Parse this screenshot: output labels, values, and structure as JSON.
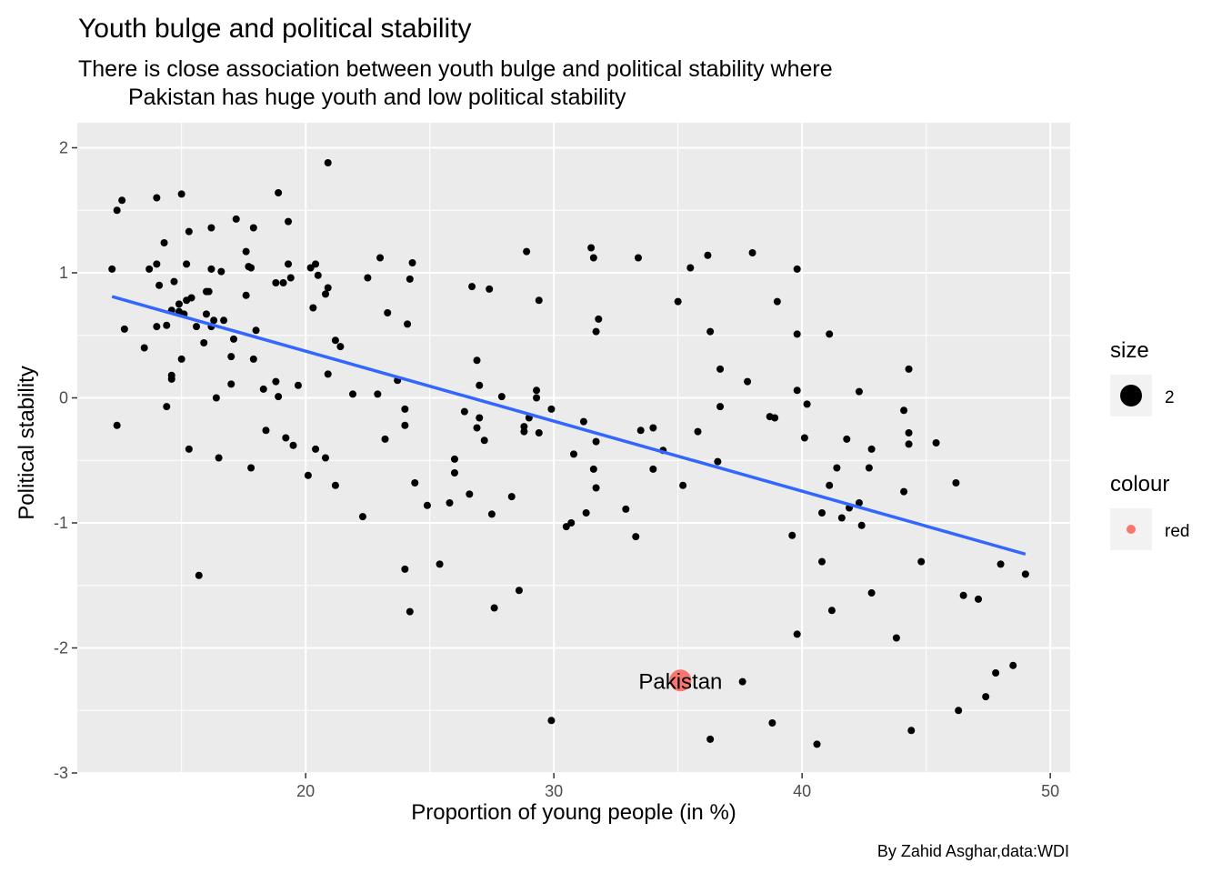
{
  "chart_data": {
    "type": "scatter",
    "title": "Youth bulge and political stability",
    "subtitle_lines": [
      "There is close association between youth bulge and political stability where",
      "Pakistan has huge youth and low political stability"
    ],
    "xlabel": "Proportion of young people (in %)",
    "ylabel": "Political stability",
    "caption": "By Zahid Asghar,data:WDI",
    "xlim": [
      10.8,
      50.8
    ],
    "ylim": [
      -3.0,
      2.2
    ],
    "x_ticks": [
      20,
      30,
      40,
      50
    ],
    "y_ticks": [
      -3,
      -2,
      -1,
      0,
      1,
      2
    ],
    "x_tick_labels": [
      "20",
      "30",
      "40",
      "50"
    ],
    "y_tick_labels": [
      "-3",
      "-2",
      "-1",
      "0",
      "1",
      "2"
    ],
    "grid": true,
    "legend_position": "right",
    "colors": {
      "panel": "#ebebeb",
      "grid": "#ffffff",
      "points": "#000000",
      "trend": "#3366ff",
      "highlight": "#f8766d"
    },
    "trend_line": {
      "x": [
        12.2,
        49.0
      ],
      "y": [
        0.81,
        -1.25
      ]
    },
    "highlight": {
      "label": "Pakistan",
      "x": 35.1,
      "y": -2.26
    },
    "legends": [
      {
        "title": "size",
        "label": "2",
        "symbol": "black-dot"
      },
      {
        "title": "colour",
        "label": "red",
        "symbol": "red-dot"
      }
    ],
    "points": [
      [
        12.2,
        1.03
      ],
      [
        12.4,
        -0.22
      ],
      [
        12.4,
        1.5
      ],
      [
        12.6,
        1.58
      ],
      [
        12.7,
        0.55
      ],
      [
        13.5,
        0.4
      ],
      [
        13.7,
        1.03
      ],
      [
        14.0,
        1.07
      ],
      [
        14.0,
        1.6
      ],
      [
        14.0,
        0.57
      ],
      [
        14.1,
        0.9
      ],
      [
        14.3,
        1.24
      ],
      [
        14.4,
        0.58
      ],
      [
        14.4,
        -0.07
      ],
      [
        14.6,
        0.15
      ],
      [
        14.6,
        0.18
      ],
      [
        14.6,
        0.7
      ],
      [
        14.7,
        0.93
      ],
      [
        14.9,
        0.75
      ],
      [
        14.9,
        0.69
      ],
      [
        15.0,
        0.31
      ],
      [
        15.0,
        1.63
      ],
      [
        15.1,
        0.67
      ],
      [
        15.2,
        1.07
      ],
      [
        15.2,
        0.78
      ],
      [
        15.3,
        1.33
      ],
      [
        15.3,
        -0.41
      ],
      [
        15.4,
        0.8
      ],
      [
        15.6,
        0.57
      ],
      [
        15.7,
        -1.42
      ],
      [
        15.9,
        0.44
      ],
      [
        16.0,
        0.85
      ],
      [
        16.0,
        0.67
      ],
      [
        16.1,
        0.85
      ],
      [
        16.2,
        1.03
      ],
      [
        16.2,
        0.57
      ],
      [
        16.3,
        0.62
      ],
      [
        16.2,
        1.36
      ],
      [
        16.4,
        0.0
      ],
      [
        16.5,
        -0.48
      ],
      [
        16.6,
        1.01
      ],
      [
        16.7,
        0.62
      ],
      [
        17.0,
        0.11
      ],
      [
        17.0,
        0.33
      ],
      [
        17.1,
        0.47
      ],
      [
        17.2,
        1.43
      ],
      [
        17.6,
        0.82
      ],
      [
        17.6,
        1.17
      ],
      [
        17.7,
        1.05
      ],
      [
        17.8,
        -0.56
      ],
      [
        17.9,
        1.36
      ],
      [
        17.9,
        0.31
      ],
      [
        18.0,
        0.54
      ],
      [
        17.8,
        1.04
      ],
      [
        18.3,
        0.07
      ],
      [
        18.4,
        -0.26
      ],
      [
        18.8,
        0.92
      ],
      [
        18.8,
        0.13
      ],
      [
        18.9,
        0.01
      ],
      [
        18.9,
        1.64
      ],
      [
        19.1,
        0.92
      ],
      [
        19.2,
        -0.32
      ],
      [
        19.3,
        1.07
      ],
      [
        19.3,
        1.41
      ],
      [
        19.4,
        0.96
      ],
      [
        19.5,
        -0.38
      ],
      [
        19.7,
        0.1
      ],
      [
        20.1,
        -0.62
      ],
      [
        20.2,
        1.04
      ],
      [
        20.3,
        0.72
      ],
      [
        20.4,
        1.07
      ],
      [
        20.4,
        -0.41
      ],
      [
        20.5,
        0.98
      ],
      [
        20.8,
        -0.48
      ],
      [
        20.8,
        0.83
      ],
      [
        20.9,
        0.88
      ],
      [
        20.9,
        0.19
      ],
      [
        20.9,
        1.88
      ],
      [
        21.2,
        -0.7
      ],
      [
        21.2,
        0.46
      ],
      [
        21.4,
        0.41
      ],
      [
        21.9,
        0.03
      ],
      [
        22.3,
        -0.95
      ],
      [
        22.5,
        0.96
      ],
      [
        22.9,
        0.03
      ],
      [
        23.0,
        1.12
      ],
      [
        23.2,
        -0.33
      ],
      [
        23.3,
        0.68
      ],
      [
        23.7,
        0.14
      ],
      [
        24.0,
        -1.37
      ],
      [
        24.0,
        -0.09
      ],
      [
        24.0,
        -0.22
      ],
      [
        24.1,
        0.59
      ],
      [
        24.2,
        0.95
      ],
      [
        24.2,
        -1.71
      ],
      [
        24.3,
        1.08
      ],
      [
        24.4,
        -0.68
      ],
      [
        24.9,
        -0.86
      ],
      [
        25.4,
        -1.33
      ],
      [
        25.8,
        -0.84
      ],
      [
        26.0,
        -0.49
      ],
      [
        26.0,
        -0.6
      ],
      [
        26.4,
        -0.11
      ],
      [
        26.6,
        -0.77
      ],
      [
        26.7,
        0.89
      ],
      [
        26.9,
        -0.24
      ],
      [
        26.9,
        0.3
      ],
      [
        27.0,
        -0.16
      ],
      [
        27.0,
        0.1
      ],
      [
        27.2,
        -0.34
      ],
      [
        27.4,
        0.87
      ],
      [
        27.5,
        -0.93
      ],
      [
        27.6,
        -1.68
      ],
      [
        27.9,
        0.01
      ],
      [
        28.3,
        -0.79
      ],
      [
        28.6,
        -1.54
      ],
      [
        28.8,
        -0.27
      ],
      [
        28.8,
        -0.23
      ],
      [
        28.9,
        1.17
      ],
      [
        29.0,
        -0.16
      ],
      [
        29.3,
        0.06
      ],
      [
        29.3,
        0.0
      ],
      [
        29.4,
        -0.28
      ],
      [
        29.4,
        0.78
      ],
      [
        29.9,
        -0.09
      ],
      [
        29.9,
        -2.58
      ],
      [
        30.5,
        -1.03
      ],
      [
        30.7,
        -1.0
      ],
      [
        30.8,
        -0.45
      ],
      [
        31.2,
        -0.19
      ],
      [
        31.3,
        -0.92
      ],
      [
        31.5,
        1.2
      ],
      [
        31.6,
        -0.57
      ],
      [
        31.6,
        1.12
      ],
      [
        31.7,
        -0.72
      ],
      [
        31.7,
        0.53
      ],
      [
        31.7,
        -0.35
      ],
      [
        31.8,
        0.63
      ],
      [
        32.9,
        -0.89
      ],
      [
        33.3,
        -1.11
      ],
      [
        33.4,
        1.12
      ],
      [
        33.5,
        -0.26
      ],
      [
        34.0,
        -0.24
      ],
      [
        34.0,
        -0.57
      ],
      [
        34.4,
        -0.42
      ],
      [
        35.0,
        0.77
      ],
      [
        35.2,
        -0.7
      ],
      [
        35.5,
        1.04
      ],
      [
        35.8,
        -0.27
      ],
      [
        36.2,
        1.14
      ],
      [
        36.3,
        -2.73
      ],
      [
        36.3,
        0.53
      ],
      [
        36.6,
        -0.51
      ],
      [
        36.7,
        -0.07
      ],
      [
        36.7,
        0.23
      ],
      [
        37.6,
        -2.27
      ],
      [
        37.8,
        0.13
      ],
      [
        38.0,
        1.16
      ],
      [
        38.7,
        -0.15
      ],
      [
        38.8,
        -2.6
      ],
      [
        38.9,
        -0.16
      ],
      [
        39.0,
        0.77
      ],
      [
        39.6,
        -1.1
      ],
      [
        39.8,
        -1.89
      ],
      [
        39.8,
        0.51
      ],
      [
        39.8,
        0.06
      ],
      [
        39.8,
        1.03
      ],
      [
        40.1,
        -0.32
      ],
      [
        40.2,
        -0.05
      ],
      [
        40.6,
        -2.77
      ],
      [
        40.8,
        -0.92
      ],
      [
        40.8,
        -1.31
      ],
      [
        41.1,
        -0.7
      ],
      [
        41.1,
        0.51
      ],
      [
        41.2,
        -1.7
      ],
      [
        41.4,
        -0.56
      ],
      [
        41.6,
        -0.96
      ],
      [
        41.8,
        -0.33
      ],
      [
        41.9,
        -0.88
      ],
      [
        42.3,
        -0.84
      ],
      [
        42.3,
        0.05
      ],
      [
        42.4,
        -1.02
      ],
      [
        42.7,
        -0.56
      ],
      [
        42.8,
        -1.56
      ],
      [
        42.8,
        -0.41
      ],
      [
        43.8,
        -1.92
      ],
      [
        44.1,
        -0.75
      ],
      [
        44.1,
        -0.1
      ],
      [
        44.3,
        -0.37
      ],
      [
        44.3,
        -0.28
      ],
      [
        44.3,
        0.23
      ],
      [
        44.4,
        -2.66
      ],
      [
        44.8,
        -1.31
      ],
      [
        45.4,
        -0.36
      ],
      [
        46.2,
        -0.68
      ],
      [
        46.3,
        -2.5
      ],
      [
        46.5,
        -1.58
      ],
      [
        47.1,
        -1.61
      ],
      [
        47.4,
        -2.39
      ],
      [
        47.8,
        -2.2
      ],
      [
        48.0,
        -1.33
      ],
      [
        48.5,
        -2.14
      ],
      [
        49.0,
        -1.41
      ]
    ]
  }
}
